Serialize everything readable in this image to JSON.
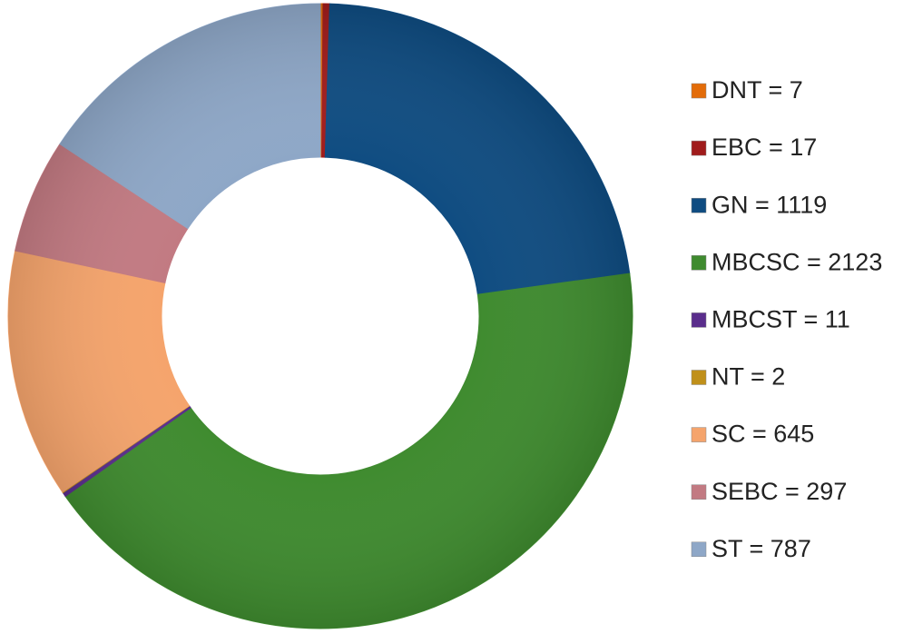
{
  "chart_data": {
    "type": "donut",
    "categories": [
      "DNT = 7",
      "EBC = 17",
      "GN = 1119",
      "MBCSC = 2123",
      "MBCST = 11",
      "NT = 2",
      "SC = 645",
      "SEBC = 297",
      "ST = 787"
    ],
    "values": [
      7,
      17,
      1119,
      2123,
      11,
      2,
      645,
      297,
      787
    ],
    "colors": [
      "#e36c09",
      "#a01c1c",
      "#0f4c81",
      "#3f8b2f",
      "#5a2d8c",
      "#c0901a",
      "#f5a46c",
      "#c27a82",
      "#8ea7c7"
    ],
    "legend": "right"
  }
}
